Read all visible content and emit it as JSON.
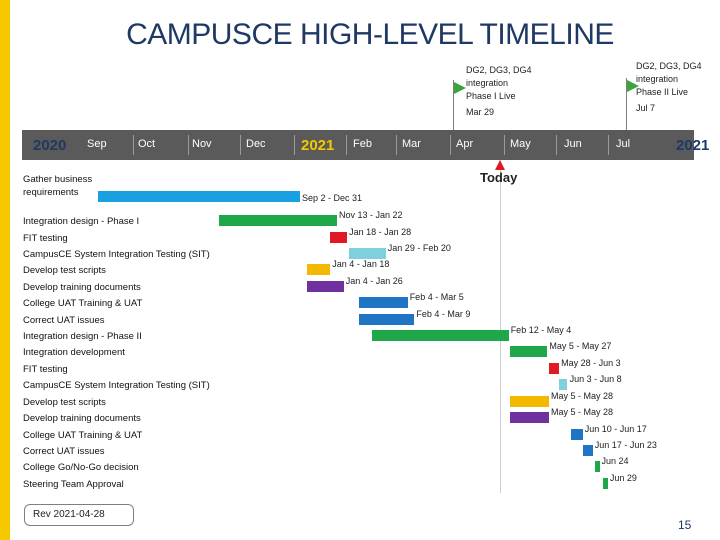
{
  "title": "CAMPUSCE HIGH-LEVEL TIMELINE",
  "axis": {
    "year_start": "2020",
    "year_next": "2021",
    "year_end": "2021",
    "months_2020": [
      "Sep",
      "Oct",
      "Nov",
      "Dec"
    ],
    "months_2021": [
      "Feb",
      "Mar",
      "Apr",
      "May",
      "Jun",
      "Jul"
    ]
  },
  "milestones": [
    {
      "id": "phase1",
      "label": "DG2, DG3, DG4 integration Phase I Live",
      "date": "Mar 29"
    },
    {
      "id": "phase2",
      "label": "DG2, DG3, DG4 integration Phase II Live",
      "date": "Jul 7"
    }
  ],
  "today_label": "Today",
  "tasks": [
    {
      "label": "Gather business requirements",
      "range": "Sep 2 - Dec 31",
      "color": "#18a0e0",
      "start": "2020-09-02",
      "end": "2020-12-31"
    },
    {
      "label": "Integration design - Phase I",
      "range": "Nov 13 - Jan 22",
      "color": "#1fa84a",
      "start": "2020-11-13",
      "end": "2021-01-22"
    },
    {
      "label": "FIT testing",
      "range": "Jan 18 - Jan 28",
      "color": "#e01a22",
      "start": "2021-01-18",
      "end": "2021-01-28"
    },
    {
      "label": "CampusCE System Integration Testing (SIT)",
      "range": "Jan 29 - Feb 20",
      "color": "#7fd0dc",
      "start": "2021-01-29",
      "end": "2021-02-20"
    },
    {
      "label": "Develop test scripts",
      "range": "Jan 4 - Jan 18",
      "color": "#f5b800",
      "start": "2021-01-04",
      "end": "2021-01-18"
    },
    {
      "label": "Develop training documents",
      "range": "Jan 4 - Jan 26",
      "color": "#7030a0",
      "start": "2021-01-04",
      "end": "2021-01-26"
    },
    {
      "label": "College UAT Training & UAT",
      "range": "Feb 4 - Mar 5",
      "color": "#1f74c4",
      "start": "2021-02-04",
      "end": "2021-03-05"
    },
    {
      "label": "Correct UAT issues",
      "range": "Feb 4 - Mar 9",
      "color": "#1f74c4",
      "start": "2021-02-04",
      "end": "2021-03-09"
    },
    {
      "label": "Integration design - Phase II",
      "range": "Feb 12 - May 4",
      "color": "#1fa84a",
      "start": "2021-02-12",
      "end": "2021-05-04"
    },
    {
      "label": "Integration development",
      "range": "May 5 - May 27",
      "color": "#1fa84a",
      "start": "2021-05-05",
      "end": "2021-05-27"
    },
    {
      "label": "FIT testing",
      "range": "May 28 - Jun 3",
      "color": "#e01a22",
      "start": "2021-05-28",
      "end": "2021-06-03"
    },
    {
      "label": "CampusCE System Integration Testing (SIT)",
      "range": "Jun 3 - Jun 8",
      "color": "#7fd0dc",
      "start": "2021-06-03",
      "end": "2021-06-08"
    },
    {
      "label": "Develop test scripts",
      "range": "May 5 - May 28",
      "color": "#f5b800",
      "start": "2021-05-05",
      "end": "2021-05-28"
    },
    {
      "label": "Develop training documents",
      "range": "May 5 - May 28",
      "color": "#7030a0",
      "start": "2021-05-05",
      "end": "2021-05-28"
    },
    {
      "label": "College UAT Training & UAT",
      "range": "Jun 10 - Jun 17",
      "color": "#1f74c4",
      "start": "2021-06-10",
      "end": "2021-06-17"
    },
    {
      "label": "Correct UAT issues",
      "range": "Jun 17 - Jun 23",
      "color": "#1f74c4",
      "start": "2021-06-17",
      "end": "2021-06-23"
    },
    {
      "label": "College Go/No-Go decision",
      "range": "Jun 24",
      "color": "#1fa84a",
      "start": "2021-06-24",
      "end": "2021-06-24"
    },
    {
      "label": "Steering Team Approval",
      "range": "Jun 29",
      "color": "#1fa84a",
      "start": "2021-06-29",
      "end": "2021-06-29"
    }
  ],
  "revision": "Rev 2021-04-28",
  "page_number": "15"
}
